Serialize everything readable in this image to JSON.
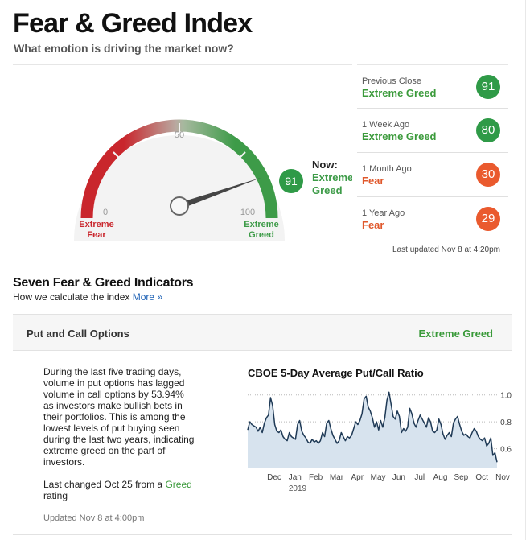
{
  "header": {
    "title": "Fear & Greed Index",
    "subtitle": "What emotion is driving the market now?"
  },
  "gauge": {
    "value": 91,
    "min_tick": "0",
    "mid_tick": "50",
    "max_tick": "100",
    "left_label_line1": "Extreme",
    "left_label_line2": "Fear",
    "right_label_line1": "Extreme",
    "right_label_line2": "Greed",
    "now_label": "Now:",
    "now_rating_line1": "Extreme",
    "now_rating_line2": "Greed",
    "badge": "91",
    "colors": {
      "fear": "#c9262c",
      "greed": "#3d9b48",
      "needle": "#444444"
    }
  },
  "history": [
    {
      "label": "Previous Close",
      "rating": "Extreme Greed",
      "value": "91",
      "tone": "greed"
    },
    {
      "label": "1 Week Ago",
      "rating": "Extreme Greed",
      "value": "80",
      "tone": "greed"
    },
    {
      "label": "1 Month Ago",
      "rating": "Fear",
      "value": "30",
      "tone": "fear"
    },
    {
      "label": "1 Year Ago",
      "rating": "Fear",
      "value": "29",
      "tone": "fear"
    }
  ],
  "last_updated": "Last updated Nov 8 at 4:20pm",
  "indicators": {
    "title": "Seven Fear & Greed Indicators",
    "subtitle": "How we calculate the index",
    "more_link": "More »"
  },
  "indicator": {
    "name": "Put and Call Options",
    "rating": "Extreme Greed",
    "description": "During the last five trading days, volume in put options has lagged volume in call options by 53.94% as investors make bullish bets in their portfolios. This is among the lowest levels of put buying seen during the last two years, indicating extreme greed on the part of investors.",
    "changed_prefix": "Last changed Oct 25 from a",
    "changed_rating": "Greed",
    "changed_suffix": "rating",
    "updated": "Updated Nov 8 at 4:00pm"
  },
  "chart_data": {
    "type": "area",
    "title": "CBOE 5-Day Average Put/Call Ratio",
    "xlabel": "",
    "ylabel": "",
    "year_label": "2019",
    "x_ticks": [
      "Dec",
      "Jan",
      "Feb",
      "Mar",
      "Apr",
      "May",
      "Jun",
      "Jul",
      "Aug",
      "Sep",
      "Oct",
      "Nov"
    ],
    "y_ticks": [
      "1.0",
      "0.8",
      "0.6"
    ],
    "ylim": [
      0.46,
      1.04
    ],
    "grid": "horizontal-dotted",
    "x": [
      0,
      1,
      2,
      3,
      4,
      5,
      6,
      7,
      8,
      9,
      10,
      11,
      12,
      13,
      14,
      15,
      16,
      17,
      18,
      19,
      20,
      21,
      22,
      23,
      24,
      25,
      26,
      27,
      28,
      29,
      30,
      31,
      32,
      33,
      34,
      35,
      36,
      37,
      38,
      39,
      40,
      41,
      42,
      43,
      44,
      45,
      46,
      47,
      48,
      49,
      50,
      51,
      52,
      53,
      54,
      55,
      56,
      57,
      58,
      59,
      60,
      61,
      62,
      63,
      64,
      65,
      66,
      67,
      68,
      69,
      70,
      71,
      72,
      73,
      74,
      75,
      76,
      77,
      78,
      79,
      80,
      81,
      82,
      83,
      84,
      85,
      86,
      87,
      88,
      89,
      90,
      91,
      92,
      93,
      94,
      95,
      96,
      97,
      98,
      99,
      100,
      101,
      102,
      103,
      104,
      105,
      106,
      107,
      108,
      109,
      110,
      111,
      112,
      113,
      114,
      115,
      116,
      117,
      118,
      119,
      120
    ],
    "values": [
      0.74,
      0.8,
      0.78,
      0.77,
      0.76,
      0.73,
      0.76,
      0.72,
      0.79,
      0.83,
      0.85,
      0.98,
      0.92,
      0.78,
      0.73,
      0.72,
      0.74,
      0.69,
      0.67,
      0.66,
      0.72,
      0.69,
      0.68,
      0.67,
      0.78,
      0.81,
      0.73,
      0.7,
      0.68,
      0.65,
      0.64,
      0.67,
      0.65,
      0.66,
      0.64,
      0.66,
      0.72,
      0.69,
      0.79,
      0.81,
      0.75,
      0.7,
      0.67,
      0.64,
      0.66,
      0.72,
      0.69,
      0.66,
      0.69,
      0.68,
      0.7,
      0.75,
      0.8,
      0.78,
      0.81,
      0.86,
      0.97,
      0.99,
      0.91,
      0.88,
      0.83,
      0.76,
      0.8,
      0.74,
      0.81,
      0.76,
      0.83,
      0.96,
      1.02,
      0.93,
      0.84,
      0.82,
      0.88,
      0.84,
      0.72,
      0.75,
      0.73,
      0.76,
      0.9,
      0.86,
      0.79,
      0.76,
      0.81,
      0.85,
      0.82,
      0.79,
      0.76,
      0.83,
      0.8,
      0.73,
      0.72,
      0.74,
      0.82,
      0.78,
      0.71,
      0.67,
      0.7,
      0.72,
      0.69,
      0.79,
      0.82,
      0.84,
      0.78,
      0.73,
      0.7,
      0.71,
      0.69,
      0.68,
      0.72,
      0.75,
      0.73,
      0.69,
      0.67,
      0.66,
      0.68,
      0.62,
      0.64,
      0.68,
      0.55,
      0.57,
      0.5
    ]
  }
}
